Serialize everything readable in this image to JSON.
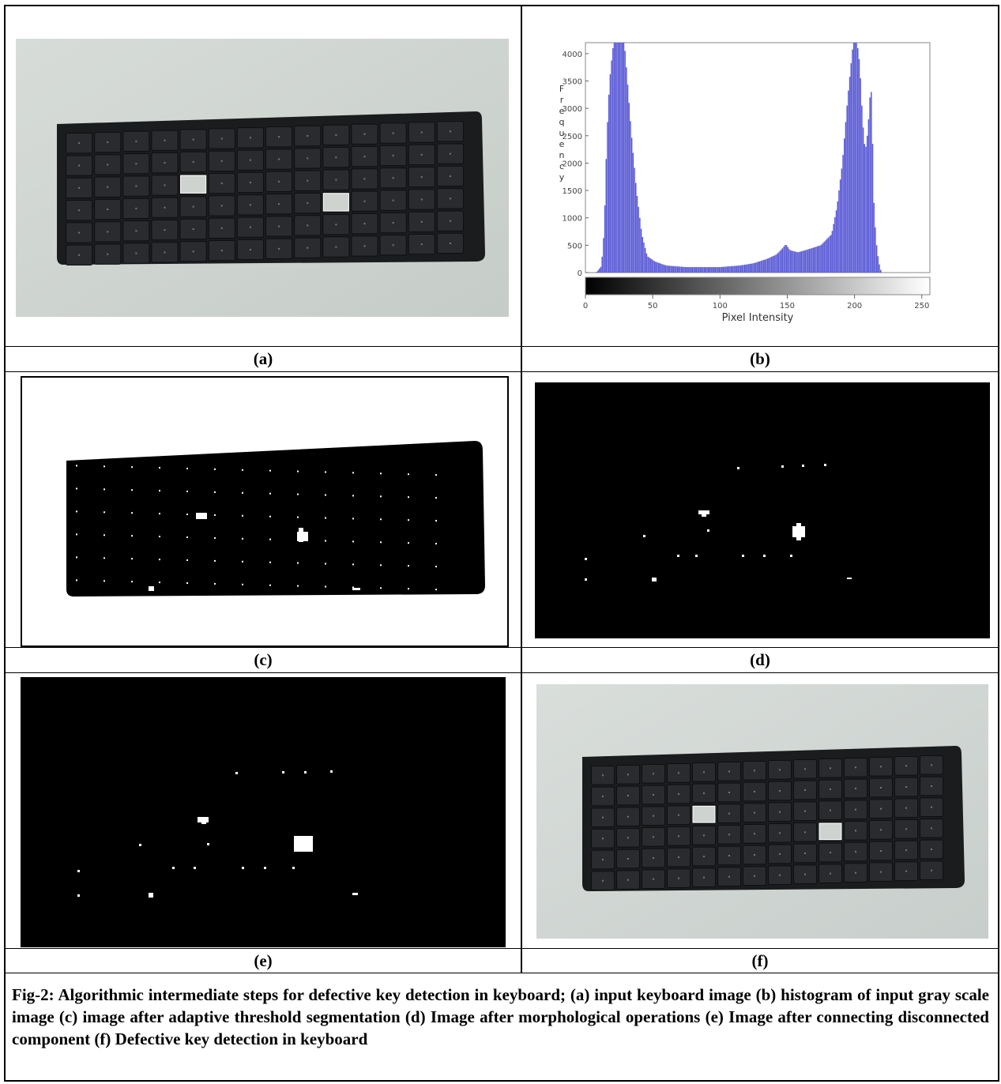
{
  "panels": {
    "a": {
      "label": "(a)"
    },
    "b": {
      "label": "(b)"
    },
    "c": {
      "label": "(c)"
    },
    "d": {
      "label": "(d)"
    },
    "e": {
      "label": "(e)"
    },
    "f": {
      "label": "(f)"
    }
  },
  "chart_data": {
    "type": "bar",
    "title": "",
    "xlabel": "Pixel Intensity",
    "ylabel": "Frequency",
    "xlim": [
      0,
      256
    ],
    "ylim": [
      0,
      4200
    ],
    "xticks": [
      "0",
      "50",
      "100",
      "150",
      "200",
      "250"
    ],
    "yticks": [
      "0",
      "500",
      "1000",
      "1500",
      "2000",
      "2500",
      "3000",
      "3500",
      "4000"
    ],
    "colorbar": "grayscale 0-255",
    "bar_color": "#5a5ad6",
    "profile": [
      [
        0,
        0
      ],
      [
        8,
        0
      ],
      [
        12,
        120
      ],
      [
        14,
        800
      ],
      [
        16,
        2500
      ],
      [
        18,
        3500
      ],
      [
        20,
        4000
      ],
      [
        21,
        4200
      ],
      [
        29,
        4200
      ],
      [
        31,
        3600
      ],
      [
        34,
        2600
      ],
      [
        38,
        1500
      ],
      [
        42,
        700
      ],
      [
        46,
        300
      ],
      [
        52,
        200
      ],
      [
        60,
        130
      ],
      [
        75,
        100
      ],
      [
        100,
        100
      ],
      [
        115,
        130
      ],
      [
        125,
        170
      ],
      [
        135,
        250
      ],
      [
        142,
        330
      ],
      [
        146,
        430
      ],
      [
        149,
        520
      ],
      [
        152,
        410
      ],
      [
        158,
        370
      ],
      [
        165,
        420
      ],
      [
        175,
        500
      ],
      [
        183,
        700
      ],
      [
        187,
        1200
      ],
      [
        191,
        2000
      ],
      [
        195,
        3200
      ],
      [
        199,
        4200
      ],
      [
        202,
        4200
      ],
      [
        204,
        3800
      ],
      [
        206,
        2800
      ],
      [
        208,
        2200
      ],
      [
        210,
        2600
      ],
      [
        212,
        3400
      ],
      [
        213,
        3200
      ],
      [
        214,
        1500
      ],
      [
        216,
        600
      ],
      [
        218,
        200
      ],
      [
        220,
        0
      ],
      [
        256,
        0
      ]
    ]
  },
  "caption": "Fig-2: Algorithmic intermediate steps for defective key detection in keyboard; (a) input keyboard image (b) histogram of input gray scale image (c) image after adaptive threshold segmentation (d) Image after morphological operations (e) Image after connecting disconnected component (f) Defective key detection in keyboard"
}
